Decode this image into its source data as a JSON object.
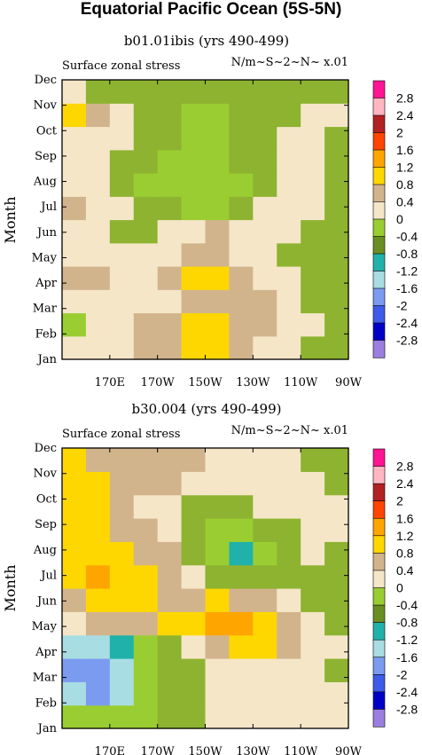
{
  "title": "Equatorial Pacific Ocean (5S-5N)",
  "level_colors": [
    "#9b7fe0",
    "#0000c8",
    "#3e5bea",
    "#7b9bf0",
    "#a8dde3",
    "#20b2aa",
    "#9acd32",
    "#8db330",
    "#f5e6c8",
    "#d2b48c",
    "#ffd700",
    "#ffa500",
    "#ff4500",
    "#b22222",
    "#ffb6c1",
    "#ff1493"
  ],
  "colorbar": {
    "labels": [
      "2.8",
      "2.4",
      "2",
      "1.6",
      "1.2",
      "0.8",
      "0.4",
      "0",
      "-0.4",
      "-0.8",
      "-1.2",
      "-1.6",
      "-2",
      "-2.4",
      "-2.8"
    ],
    "colors": [
      "#ff1493",
      "#ffb6c1",
      "#b22222",
      "#ff4500",
      "#ffa500",
      "#ffd700",
      "#d2b48c",
      "#f5e6c8",
      "#9acd32",
      "#6b8e23",
      "#20b2aa",
      "#a8dde3",
      "#7b9bf0",
      "#3e5bea",
      "#0000c8",
      "#9b7fe0"
    ]
  },
  "chart_data": [
    {
      "type": "heatmap",
      "subtitle": "b01.01ibis (yrs 490-499)",
      "left_label": "Surface zonal stress",
      "right_label": "N/m~S~2~N~ x.01",
      "ylabel": "Month",
      "xticks": [
        "170E",
        "170W",
        "150W",
        "130W",
        "110W",
        "90W"
      ],
      "x_values": [
        170,
        190,
        210,
        230,
        250,
        270
      ],
      "xlim": [
        150,
        270
      ],
      "yticks": [
        "Jan",
        "Feb",
        "Mar",
        "Apr",
        "May",
        "Jun",
        "Jul",
        "Aug",
        "Sep",
        "Oct",
        "Nov",
        "Dec"
      ],
      "cell_levels": [
        [
          8,
          8,
          8,
          9,
          9,
          10,
          10,
          9,
          8,
          8,
          7,
          7
        ],
        [
          6,
          8,
          8,
          9,
          9,
          10,
          10,
          9,
          9,
          8,
          8,
          7
        ],
        [
          8,
          8,
          8,
          8,
          8,
          9,
          9,
          9,
          9,
          8,
          7,
          7
        ],
        [
          9,
          9,
          8,
          8,
          9,
          10,
          10,
          9,
          8,
          8,
          7,
          7
        ],
        [
          8,
          8,
          8,
          8,
          8,
          9,
          9,
          8,
          8,
          7,
          7,
          7
        ],
        [
          8,
          8,
          7,
          7,
          8,
          8,
          9,
          8,
          8,
          8,
          7,
          7
        ],
        [
          9,
          8,
          8,
          7,
          7,
          6,
          6,
          7,
          8,
          8,
          8,
          7
        ],
        [
          8,
          8,
          7,
          6,
          6,
          6,
          6,
          6,
          7,
          8,
          8,
          7
        ],
        [
          8,
          8,
          7,
          7,
          6,
          6,
          6,
          7,
          7,
          8,
          8,
          7
        ],
        [
          8,
          8,
          8,
          7,
          7,
          6,
          6,
          7,
          7,
          8,
          8,
          7
        ],
        [
          10,
          9,
          8,
          7,
          7,
          6,
          6,
          7,
          7,
          7,
          8,
          8
        ],
        [
          8,
          7,
          7,
          7,
          7,
          7,
          7,
          7,
          7,
          7,
          7,
          7
        ]
      ]
    },
    {
      "type": "heatmap",
      "subtitle": "b30.004 (yrs 490-499)",
      "left_label": "Surface zonal stress",
      "right_label": "N/m~S~2~N~ x.01",
      "ylabel": "Month",
      "xticks": [
        "170E",
        "170W",
        "150W",
        "130W",
        "110W",
        "90W"
      ],
      "x_values": [
        170,
        190,
        210,
        230,
        250,
        270
      ],
      "xlim": [
        150,
        270
      ],
      "yticks": [
        "Jan",
        "Feb",
        "Mar",
        "Apr",
        "May",
        "Jun",
        "Jul",
        "Aug",
        "Sep",
        "Oct",
        "Nov",
        "Dec"
      ],
      "cell_levels": [
        [
          6,
          6,
          6,
          6,
          7,
          7,
          8,
          8,
          8,
          8,
          8,
          8
        ],
        [
          4,
          3,
          4,
          6,
          7,
          7,
          8,
          8,
          8,
          8,
          8,
          8
        ],
        [
          3,
          3,
          4,
          6,
          7,
          7,
          8,
          8,
          8,
          8,
          8,
          7
        ],
        [
          4,
          4,
          5,
          6,
          7,
          8,
          9,
          10,
          10,
          9,
          8,
          8
        ],
        [
          8,
          9,
          9,
          9,
          10,
          10,
          11,
          11,
          10,
          9,
          8,
          7
        ],
        [
          9,
          10,
          10,
          10,
          9,
          9,
          10,
          9,
          9,
          8,
          7,
          7
        ],
        [
          10,
          11,
          10,
          10,
          9,
          8,
          7,
          7,
          7,
          7,
          7,
          7
        ],
        [
          10,
          10,
          10,
          9,
          9,
          7,
          6,
          5,
          6,
          7,
          8,
          7
        ],
        [
          10,
          10,
          9,
          9,
          8,
          7,
          6,
          6,
          7,
          7,
          8,
          8
        ],
        [
          10,
          10,
          9,
          8,
          8,
          7,
          7,
          7,
          8,
          8,
          8,
          8
        ],
        [
          10,
          10,
          9,
          9,
          9,
          8,
          8,
          8,
          8,
          8,
          8,
          7
        ],
        [
          10,
          9,
          9,
          9,
          9,
          9,
          8,
          8,
          8,
          8,
          7,
          7
        ]
      ]
    }
  ]
}
